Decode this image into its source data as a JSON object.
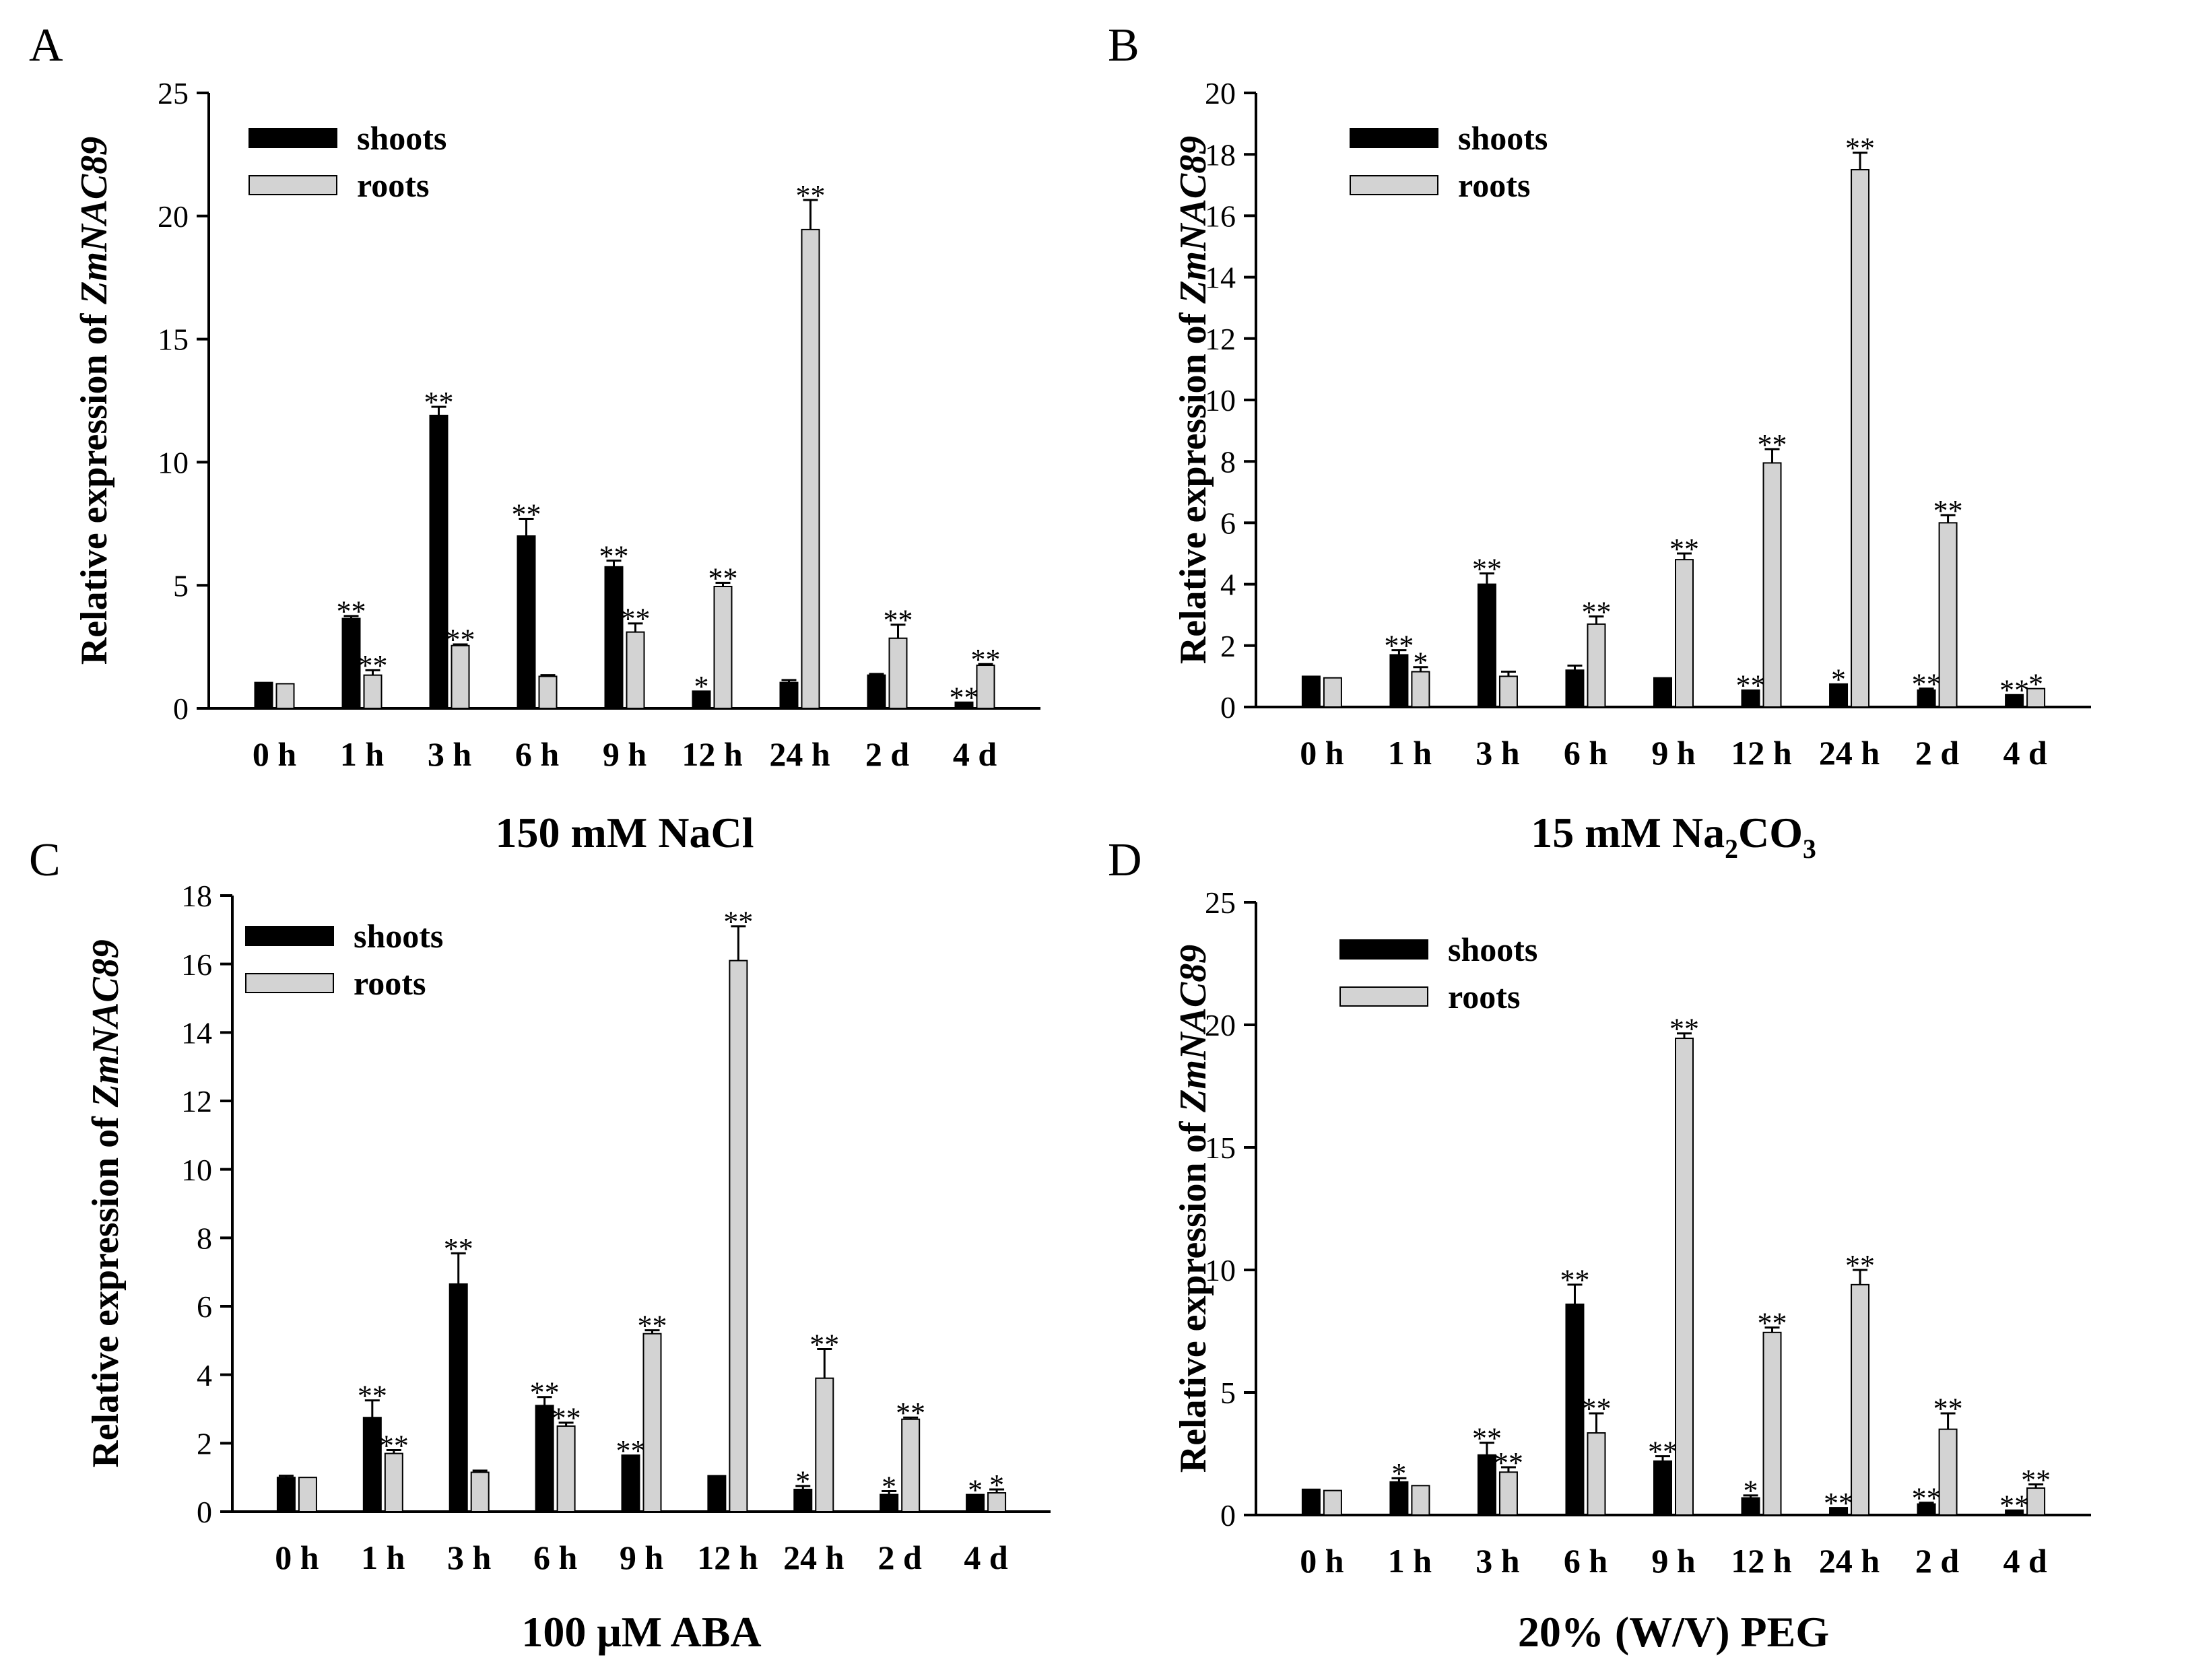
{
  "figure": {
    "categories": [
      "0 h",
      "1 h",
      "3 h",
      "6 h",
      "9 h",
      "12 h",
      "24 h",
      "2 d",
      "4 d"
    ],
    "ylabel_prefix": "Relative expression of ",
    "gene": "ZmNAC89",
    "legend": [
      "shoots",
      "roots"
    ],
    "colors": {
      "shoots": "#000000",
      "roots": "#d3d3d3",
      "axis": "#000000"
    }
  },
  "chart_data": [
    {
      "type": "bar",
      "panel": "A",
      "title": "150 mM NaCl",
      "title_parts": [
        {
          "text": "150 mM NaCl",
          "sub": false
        }
      ],
      "ylim": [
        0,
        25
      ],
      "yticks": [
        0,
        5,
        10,
        15,
        20,
        25
      ],
      "series": [
        {
          "name": "shoots",
          "values": [
            1.05,
            3.65,
            11.9,
            7.0,
            5.75,
            0.7,
            1.05,
            1.35,
            0.25
          ],
          "errors": [
            0,
            0.1,
            0.35,
            0.7,
            0.25,
            0,
            0.1,
            0.05,
            0
          ],
          "sig": [
            "",
            "**",
            "**",
            "**",
            "**",
            "*",
            "",
            "",
            "**"
          ]
        },
        {
          "name": "roots",
          "values": [
            1.0,
            1.35,
            2.55,
            1.3,
            3.1,
            4.95,
            19.45,
            2.85,
            1.75
          ],
          "errors": [
            0,
            0.2,
            0.05,
            0.05,
            0.35,
            0.15,
            1.2,
            0.55,
            0.05
          ],
          "sig": [
            "",
            "**",
            "**",
            "",
            "**",
            "**",
            "**",
            "**",
            "**"
          ]
        }
      ]
    },
    {
      "type": "bar",
      "panel": "B",
      "title": "15 mM Na2CO3",
      "title_parts": [
        {
          "text": "15 mM Na",
          "sub": false
        },
        {
          "text": "2",
          "sub": true
        },
        {
          "text": "CO",
          "sub": false
        },
        {
          "text": "3",
          "sub": true
        }
      ],
      "ylim": [
        0,
        20
      ],
      "yticks": [
        0,
        2,
        4,
        6,
        8,
        10,
        12,
        14,
        16,
        18,
        20
      ],
      "series": [
        {
          "name": "shoots",
          "values": [
            1.0,
            1.7,
            4.0,
            1.2,
            0.95,
            0.55,
            0.75,
            0.55,
            0.4
          ],
          "errors": [
            0,
            0.15,
            0.35,
            0.15,
            0,
            0,
            0,
            0.05,
            0
          ],
          "sig": [
            "",
            "**",
            "**",
            "",
            "",
            "**",
            "*",
            "**",
            "**"
          ]
        },
        {
          "name": "roots",
          "values": [
            0.95,
            1.15,
            1.0,
            2.7,
            4.8,
            7.95,
            17.5,
            6.0,
            0.6
          ],
          "errors": [
            0,
            0.15,
            0.15,
            0.25,
            0.2,
            0.45,
            0.55,
            0.25,
            0
          ],
          "sig": [
            "",
            "*",
            "",
            "**",
            "**",
            "**",
            "**",
            "**",
            "*"
          ]
        }
      ]
    },
    {
      "type": "bar",
      "panel": "C",
      "title": "100 μM ABA",
      "title_parts": [
        {
          "text": "100 μM ABA",
          "sub": false
        }
      ],
      "ylim": [
        0,
        18
      ],
      "yticks": [
        0,
        2,
        4,
        6,
        8,
        10,
        12,
        14,
        16,
        18
      ],
      "series": [
        {
          "name": "shoots",
          "values": [
            1.0,
            2.75,
            6.65,
            3.1,
            1.65,
            1.05,
            0.65,
            0.5,
            0.5
          ],
          "errors": [
            0.05,
            0.5,
            0.9,
            0.25,
            0,
            0,
            0.1,
            0.1,
            0
          ],
          "sig": [
            "",
            "**",
            "**",
            "**",
            "**",
            "",
            "*",
            "*",
            "*"
          ]
        },
        {
          "name": "roots",
          "values": [
            1.0,
            1.7,
            1.15,
            2.5,
            5.2,
            16.1,
            3.9,
            2.7,
            0.55
          ],
          "errors": [
            0,
            0.1,
            0.05,
            0.1,
            0.1,
            1.0,
            0.85,
            0.05,
            0.1
          ],
          "sig": [
            "",
            "**",
            "",
            "**",
            "**",
            "**",
            "**",
            "**",
            "*"
          ]
        }
      ]
    },
    {
      "type": "bar",
      "panel": "D",
      "title": "20% (W/V) PEG",
      "title_parts": [
        {
          "text": "20% (W/V) PEG",
          "sub": false
        }
      ],
      "ylim": [
        0,
        25
      ],
      "yticks": [
        0,
        5,
        10,
        15,
        20,
        25
      ],
      "series": [
        {
          "name": "shoots",
          "values": [
            1.05,
            1.35,
            2.45,
            8.6,
            2.2,
            0.7,
            0.3,
            0.45,
            0.2
          ],
          "errors": [
            0,
            0.15,
            0.5,
            0.8,
            0.2,
            0.1,
            0,
            0.05,
            0
          ],
          "sig": [
            "",
            "*",
            "**",
            "**",
            "**",
            "*",
            "**",
            "**",
            "**"
          ]
        },
        {
          "name": "roots",
          "values": [
            1.0,
            1.2,
            1.75,
            3.35,
            19.45,
            7.45,
            9.4,
            3.5,
            1.1
          ],
          "errors": [
            0,
            0,
            0.2,
            0.8,
            0.2,
            0.2,
            0.6,
            0.65,
            0.15
          ],
          "sig": [
            "",
            "",
            "**",
            "**",
            "**",
            "**",
            "**",
            "**",
            "**"
          ]
        }
      ]
    }
  ]
}
